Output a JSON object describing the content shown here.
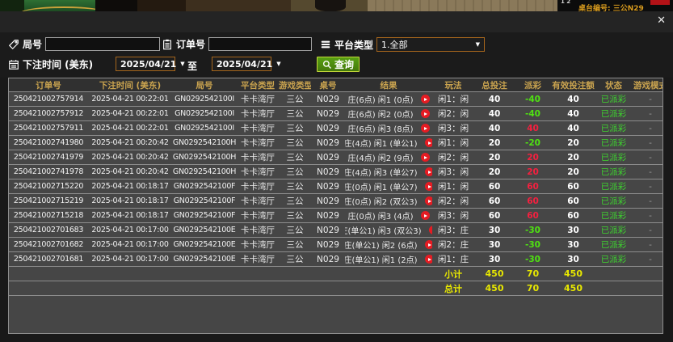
{
  "video_bar": {
    "side_numbers": "1 2",
    "table_label": "桌台编号: 三公N29"
  },
  "modal": {
    "close_glyph": "✕",
    "filters": {
      "round_label": "局号",
      "round_value": "",
      "order_label": "订单号",
      "order_value": "",
      "platform_label": "平台类型",
      "platform_selected": "1.全部",
      "dropdown_arrow": "▼",
      "bet_time_label": "下注时间 (美东)",
      "date_from": "2025/04/21",
      "to_label": "至",
      "date_to": "2025/04/21",
      "query_label": "查询"
    },
    "table": {
      "headers": [
        "订单号",
        "下注时间 (美东)",
        "局号",
        "平台类型",
        "游戏类型",
        "桌号",
        "结果",
        "玩法",
        "总投注",
        "派彩",
        "有效投注额",
        "状态",
        "游戏模式"
      ],
      "rows": [
        {
          "order": "250421002757914",
          "time": "2025-04-21 00:22:01",
          "round": "GN0292542100I",
          "platform": "卡卡湾厅",
          "game": "三公",
          "table_no": "N029",
          "result": "庄(6点) 闲1 (0点)",
          "play": "闲1：闲",
          "bet": "40",
          "payout": "-40",
          "valid": "40",
          "status": "已派彩",
          "mode": "-"
        },
        {
          "order": "250421002757912",
          "time": "2025-04-21 00:22:01",
          "round": "GN0292542100I",
          "platform": "卡卡湾厅",
          "game": "三公",
          "table_no": "N029",
          "result": "庄(6点) 闲2 (0点)",
          "play": "闲2：闲",
          "bet": "40",
          "payout": "-40",
          "valid": "40",
          "status": "已派彩",
          "mode": "-"
        },
        {
          "order": "250421002757911",
          "time": "2025-04-21 00:22:01",
          "round": "GN0292542100I",
          "platform": "卡卡湾厅",
          "game": "三公",
          "table_no": "N029",
          "result": "庄(6点) 闲3 (8点)",
          "play": "闲3：闲",
          "bet": "40",
          "payout": "40",
          "valid": "40",
          "status": "已派彩",
          "mode": "-"
        },
        {
          "order": "250421002741980",
          "time": "2025-04-21 00:20:42",
          "round": "GN0292542100H",
          "platform": "卡卡湾厅",
          "game": "三公",
          "table_no": "N029",
          "result": "庄(4点) 闲1 (单公1)",
          "play": "闲1：闲",
          "bet": "20",
          "payout": "-20",
          "valid": "20",
          "status": "已派彩",
          "mode": "-"
        },
        {
          "order": "250421002741979",
          "time": "2025-04-21 00:20:42",
          "round": "GN0292542100H",
          "platform": "卡卡湾厅",
          "game": "三公",
          "table_no": "N029",
          "result": "庄(4点) 闲2 (9点)",
          "play": "闲2：闲",
          "bet": "20",
          "payout": "20",
          "valid": "20",
          "status": "已派彩",
          "mode": "-"
        },
        {
          "order": "250421002741978",
          "time": "2025-04-21 00:20:42",
          "round": "GN0292542100H",
          "platform": "卡卡湾厅",
          "game": "三公",
          "table_no": "N029",
          "result": "庄(4点) 闲3 (单公7)",
          "play": "闲3：闲",
          "bet": "20",
          "payout": "20",
          "valid": "20",
          "status": "已派彩",
          "mode": "-"
        },
        {
          "order": "250421002715220",
          "time": "2025-04-21 00:18:17",
          "round": "GN0292542100F",
          "platform": "卡卡湾厅",
          "game": "三公",
          "table_no": "N029",
          "result": "庄(0点) 闲1 (单公7)",
          "play": "闲1：闲",
          "bet": "60",
          "payout": "60",
          "valid": "60",
          "status": "已派彩",
          "mode": "-"
        },
        {
          "order": "250421002715219",
          "time": "2025-04-21 00:18:17",
          "round": "GN0292542100F",
          "platform": "卡卡湾厅",
          "game": "三公",
          "table_no": "N029",
          "result": "庄(0点) 闲2 (双公3)",
          "play": "闲2：闲",
          "bet": "60",
          "payout": "60",
          "valid": "60",
          "status": "已派彩",
          "mode": "-"
        },
        {
          "order": "250421002715218",
          "time": "2025-04-21 00:18:17",
          "round": "GN0292542100F",
          "platform": "卡卡湾厅",
          "game": "三公",
          "table_no": "N029",
          "result": "庄(0点) 闲3 (4点)",
          "play": "闲3：闲",
          "bet": "60",
          "payout": "60",
          "valid": "60",
          "status": "已派彩",
          "mode": "-"
        },
        {
          "order": "250421002701683",
          "time": "2025-04-21 00:17:00",
          "round": "GN0292542100E",
          "platform": "卡卡湾厅",
          "game": "三公",
          "table_no": "N029",
          "result": "庄(单公1) 闲3 (双公3)",
          "play": "闲3：庄",
          "bet": "30",
          "payout": "-30",
          "valid": "30",
          "status": "已派彩",
          "mode": "-"
        },
        {
          "order": "250421002701682",
          "time": "2025-04-21 00:17:00",
          "round": "GN0292542100E",
          "platform": "卡卡湾厅",
          "game": "三公",
          "table_no": "N029",
          "result": "庄(单公1) 闲2 (6点)",
          "play": "闲2：庄",
          "bet": "30",
          "payout": "-30",
          "valid": "30",
          "status": "已派彩",
          "mode": "-"
        },
        {
          "order": "250421002701681",
          "time": "2025-04-21 00:17:00",
          "round": "GN0292542100E",
          "platform": "卡卡湾厅",
          "game": "三公",
          "table_no": "N029",
          "result": "庄(单公1) 闲1 (2点)",
          "play": "闲1：庄",
          "bet": "30",
          "payout": "-30",
          "valid": "30",
          "status": "已派彩",
          "mode": "-"
        }
      ],
      "subtotal": {
        "label": "小计",
        "bet": "450",
        "payout": "70",
        "valid": "450"
      },
      "total": {
        "label": "总计",
        "bet": "450",
        "payout": "70",
        "valid": "450"
      }
    }
  },
  "colors": {
    "header_gold": "#c9a34f",
    "win_red": "#f5203f",
    "loss_green": "#4fe112",
    "status_green": "#3ed32f",
    "summary_yellow": "#e8e800",
    "picker_border_orange": "#a4651c",
    "query_button_green": "#4e9110",
    "play_button_red": "#e51c23"
  }
}
